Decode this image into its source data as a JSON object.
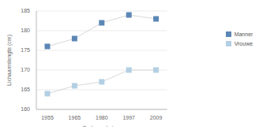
{
  "chart_data": {
    "type": "line",
    "x_label": "Onderzoeksjaar",
    "y_label": "Lichaamslengte (cm)",
    "categories": [
      "1955",
      "1965",
      "1980",
      "1997",
      "2009"
    ],
    "series": [
      {
        "name": "Mannen",
        "color": "#5b87b5",
        "values": [
          176,
          178,
          182,
          184,
          183
        ]
      },
      {
        "name": "Vrouwen",
        "color": "#b3cfe4",
        "values": [
          164,
          166,
          167,
          170,
          170
        ]
      }
    ],
    "ylim": [
      160,
      185
    ],
    "yticks": [
      160,
      165,
      170,
      175,
      180,
      185
    ],
    "grid": true,
    "legend": "right",
    "marker": "square"
  }
}
